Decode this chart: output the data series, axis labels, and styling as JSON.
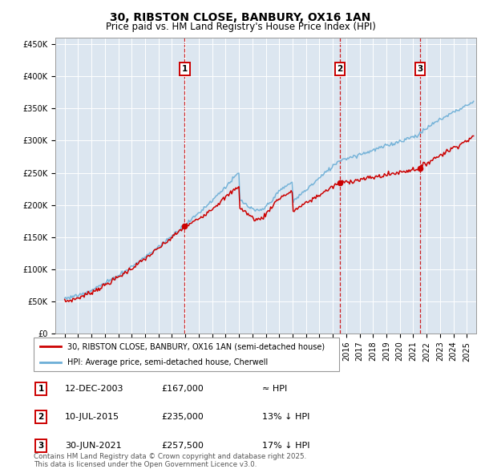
{
  "title": "30, RIBSTON CLOSE, BANBURY, OX16 1AN",
  "subtitle": "Price paid vs. HM Land Registry's House Price Index (HPI)",
  "plot_bg_color": "#dce6f0",
  "sale_dates_float": [
    2003.95,
    2015.53,
    2021.5
  ],
  "sale_prices": [
    167000,
    235000,
    257500
  ],
  "sale_labels": [
    "1",
    "2",
    "3"
  ],
  "legend_sale": "30, RIBSTON CLOSE, BANBURY, OX16 1AN (semi-detached house)",
  "legend_hpi": "HPI: Average price, semi-detached house, Cherwell",
  "table_rows": [
    [
      "1",
      "12-DEC-2003",
      "£167,000",
      "≈ HPI"
    ],
    [
      "2",
      "10-JUL-2015",
      "£235,000",
      "13% ↓ HPI"
    ],
    [
      "3",
      "30-JUN-2021",
      "£257,500",
      "17% ↓ HPI"
    ]
  ],
  "footer": "Contains HM Land Registry data © Crown copyright and database right 2025.\nThis data is licensed under the Open Government Licence v3.0.",
  "ylim": [
    0,
    460000
  ],
  "yticks": [
    0,
    50000,
    100000,
    150000,
    200000,
    250000,
    300000,
    350000,
    400000,
    450000
  ],
  "xlim_left": 1994.3,
  "xlim_right": 2025.7,
  "sale_line_color": "#cc0000",
  "hpi_line_color": "#6baed6",
  "vline_color": "#cc0000",
  "marker_box_color": "#cc0000",
  "title_fontsize": 10,
  "subtitle_fontsize": 8.5
}
